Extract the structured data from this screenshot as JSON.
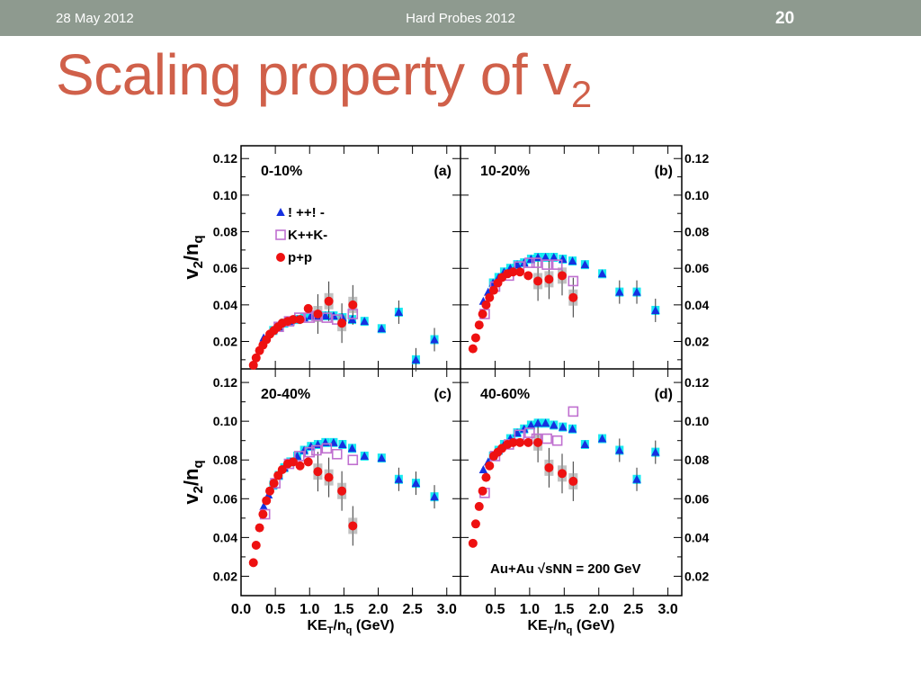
{
  "header": {
    "date": "28 May 2012",
    "conference": "Hard Probes 2012",
    "page_number": "20"
  },
  "slide": {
    "title": "Scaling property of v",
    "title_subscript": "2"
  },
  "colors": {
    "title": "#d0604a",
    "header_bar": "#8e9a8f",
    "pi": "#1530e0",
    "pi_hydro": "#00e8f0",
    "kaon": "#c070d0",
    "proton": "#ee1111"
  },
  "chart_data": {
    "type": "scatter",
    "ylabel": "v2/nq",
    "xlabel": "KET/nq (GeV)",
    "ylim_top": [
      0.005,
      0.127
    ],
    "ylim_bottom": [
      0.01,
      0.127
    ],
    "xlim": [
      0,
      3.2
    ],
    "yticks_top": [
      "0.12",
      "0.10",
      "0.08",
      "0.06",
      "0.04",
      "0.02"
    ],
    "yticks_bottom": [
      "0.12",
      "0.10",
      "0.08",
      "0.06",
      "0.04",
      "0.02"
    ],
    "xticks_left": [
      "0.0",
      "0.5",
      "1.0",
      "1.5",
      "2.0",
      "2.5",
      "3.0"
    ],
    "xticks_right": [
      "0.5",
      "1.0",
      "1.5",
      "2.0",
      "2.5",
      "3.0"
    ],
    "legend": [
      {
        "label": "! ++! -",
        "marker": "triangle",
        "color": "#1530e0"
      },
      {
        "label": "K++K-",
        "marker": "open-square",
        "color": "#c070d0"
      },
      {
        "label": "p+p",
        "marker": "circle",
        "color": "#ee1111"
      }
    ],
    "annotation": "Au+Au √sNN = 200 GeV",
    "panels": [
      {
        "id": "a",
        "centrality": "0-10%",
        "label": "(a)",
        "pions": [
          [
            0.33,
            0.022
          ],
          [
            0.4,
            0.024
          ],
          [
            0.47,
            0.026
          ],
          [
            0.55,
            0.028
          ],
          [
            0.63,
            0.03
          ],
          [
            0.72,
            0.031
          ],
          [
            0.82,
            0.032
          ],
          [
            0.92,
            0.033
          ],
          [
            1.02,
            0.034
          ],
          [
            1.12,
            0.034
          ],
          [
            1.23,
            0.034
          ],
          [
            1.35,
            0.034
          ],
          [
            1.48,
            0.033
          ],
          [
            1.62,
            0.032
          ],
          [
            1.8,
            0.031
          ],
          [
            2.05,
            0.027
          ],
          [
            2.3,
            0.036
          ],
          [
            2.55,
            0.01
          ],
          [
            2.82,
            0.021
          ]
        ],
        "kaons": [
          [
            0.55,
            0.028
          ],
          [
            0.7,
            0.031
          ],
          [
            0.85,
            0.033
          ],
          [
            1.0,
            0.033
          ],
          [
            1.1,
            0.034
          ],
          [
            1.25,
            0.033
          ],
          [
            1.4,
            0.032
          ],
          [
            1.63,
            0.035
          ]
        ],
        "protons": [
          [
            0.18,
            0.007
          ],
          [
            0.22,
            0.011
          ],
          [
            0.27,
            0.015
          ],
          [
            0.32,
            0.018
          ],
          [
            0.37,
            0.021
          ],
          [
            0.42,
            0.024
          ],
          [
            0.48,
            0.026
          ],
          [
            0.54,
            0.028
          ],
          [
            0.6,
            0.03
          ],
          [
            0.68,
            0.031
          ],
          [
            0.76,
            0.032
          ],
          [
            0.86,
            0.032
          ],
          [
            0.98,
            0.038
          ],
          [
            1.12,
            0.035
          ],
          [
            1.28,
            0.042
          ],
          [
            1.47,
            0.03
          ],
          [
            1.63,
            0.04
          ]
        ]
      },
      {
        "id": "b",
        "centrality": "10-20%",
        "label": "(b)",
        "pions": [
          [
            0.33,
            0.042
          ],
          [
            0.4,
            0.047
          ],
          [
            0.47,
            0.052
          ],
          [
            0.55,
            0.055
          ],
          [
            0.63,
            0.058
          ],
          [
            0.72,
            0.06
          ],
          [
            0.82,
            0.062
          ],
          [
            0.92,
            0.063
          ],
          [
            1.02,
            0.065
          ],
          [
            1.12,
            0.066
          ],
          [
            1.23,
            0.066
          ],
          [
            1.35,
            0.066
          ],
          [
            1.48,
            0.065
          ],
          [
            1.62,
            0.064
          ],
          [
            1.8,
            0.062
          ],
          [
            2.05,
            0.057
          ],
          [
            2.3,
            0.047
          ],
          [
            2.55,
            0.047
          ],
          [
            2.82,
            0.037
          ]
        ],
        "kaons": [
          [
            0.35,
            0.035
          ],
          [
            0.5,
            0.05
          ],
          [
            0.7,
            0.056
          ],
          [
            0.85,
            0.061
          ],
          [
            1.0,
            0.063
          ],
          [
            1.1,
            0.063
          ],
          [
            1.25,
            0.062
          ],
          [
            1.4,
            0.062
          ],
          [
            1.63,
            0.053
          ]
        ],
        "protons": [
          [
            0.18,
            0.016
          ],
          [
            0.22,
            0.022
          ],
          [
            0.27,
            0.029
          ],
          [
            0.32,
            0.035
          ],
          [
            0.37,
            0.04
          ],
          [
            0.42,
            0.044
          ],
          [
            0.48,
            0.048
          ],
          [
            0.54,
            0.052
          ],
          [
            0.6,
            0.055
          ],
          [
            0.68,
            0.057
          ],
          [
            0.76,
            0.058
          ],
          [
            0.86,
            0.058
          ],
          [
            0.98,
            0.056
          ],
          [
            1.12,
            0.053
          ],
          [
            1.28,
            0.054
          ],
          [
            1.47,
            0.056
          ],
          [
            1.63,
            0.044
          ]
        ]
      },
      {
        "id": "c",
        "centrality": "20-40%",
        "label": "(c)",
        "pions": [
          [
            0.33,
            0.056
          ],
          [
            0.4,
            0.062
          ],
          [
            0.47,
            0.067
          ],
          [
            0.55,
            0.072
          ],
          [
            0.63,
            0.076
          ],
          [
            0.72,
            0.079
          ],
          [
            0.82,
            0.082
          ],
          [
            0.92,
            0.085
          ],
          [
            1.02,
            0.087
          ],
          [
            1.12,
            0.088
          ],
          [
            1.23,
            0.089
          ],
          [
            1.35,
            0.089
          ],
          [
            1.48,
            0.088
          ],
          [
            1.62,
            0.086
          ],
          [
            1.8,
            0.082
          ],
          [
            2.05,
            0.081
          ],
          [
            2.3,
            0.07
          ],
          [
            2.55,
            0.068
          ],
          [
            2.82,
            0.061
          ]
        ],
        "kaons": [
          [
            0.35,
            0.052
          ],
          [
            0.5,
            0.068
          ],
          [
            0.7,
            0.078
          ],
          [
            0.85,
            0.082
          ],
          [
            1.0,
            0.084
          ],
          [
            1.1,
            0.085
          ],
          [
            1.25,
            0.086
          ],
          [
            1.4,
            0.083
          ],
          [
            1.63,
            0.08
          ]
        ],
        "protons": [
          [
            0.18,
            0.027
          ],
          [
            0.22,
            0.036
          ],
          [
            0.27,
            0.045
          ],
          [
            0.32,
            0.052
          ],
          [
            0.37,
            0.059
          ],
          [
            0.42,
            0.064
          ],
          [
            0.48,
            0.068
          ],
          [
            0.54,
            0.072
          ],
          [
            0.6,
            0.075
          ],
          [
            0.68,
            0.078
          ],
          [
            0.76,
            0.079
          ],
          [
            0.86,
            0.077
          ],
          [
            0.98,
            0.079
          ],
          [
            1.12,
            0.074
          ],
          [
            1.28,
            0.071
          ],
          [
            1.47,
            0.064
          ],
          [
            1.63,
            0.046
          ]
        ]
      },
      {
        "id": "d",
        "centrality": "40-60%",
        "label": "(d)",
        "pions": [
          [
            0.33,
            0.075
          ],
          [
            0.4,
            0.079
          ],
          [
            0.47,
            0.082
          ],
          [
            0.55,
            0.085
          ],
          [
            0.63,
            0.088
          ],
          [
            0.72,
            0.091
          ],
          [
            0.82,
            0.094
          ],
          [
            0.92,
            0.096
          ],
          [
            1.02,
            0.098
          ],
          [
            1.12,
            0.099
          ],
          [
            1.23,
            0.099
          ],
          [
            1.35,
            0.098
          ],
          [
            1.48,
            0.097
          ],
          [
            1.62,
            0.096
          ],
          [
            1.8,
            0.088
          ],
          [
            2.05,
            0.091
          ],
          [
            2.3,
            0.085
          ],
          [
            2.55,
            0.07
          ],
          [
            2.82,
            0.084
          ]
        ],
        "kaons": [
          [
            0.35,
            0.063
          ],
          [
            0.5,
            0.082
          ],
          [
            0.7,
            0.088
          ],
          [
            0.85,
            0.093
          ],
          [
            1.0,
            0.094
          ],
          [
            1.1,
            0.091
          ],
          [
            1.25,
            0.091
          ],
          [
            1.4,
            0.09
          ],
          [
            1.63,
            0.105
          ]
        ],
        "protons": [
          [
            0.18,
            0.037
          ],
          [
            0.22,
            0.047
          ],
          [
            0.27,
            0.056
          ],
          [
            0.32,
            0.064
          ],
          [
            0.37,
            0.071
          ],
          [
            0.42,
            0.077
          ],
          [
            0.48,
            0.082
          ],
          [
            0.54,
            0.084
          ],
          [
            0.6,
            0.086
          ],
          [
            0.68,
            0.088
          ],
          [
            0.76,
            0.089
          ],
          [
            0.86,
            0.089
          ],
          [
            0.98,
            0.089
          ],
          [
            1.12,
            0.089
          ],
          [
            1.28,
            0.076
          ],
          [
            1.47,
            0.073
          ],
          [
            1.63,
            0.069
          ]
        ]
      }
    ]
  }
}
